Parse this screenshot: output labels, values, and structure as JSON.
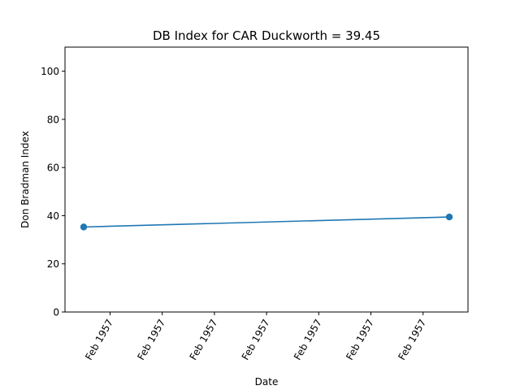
{
  "chart_data": {
    "type": "line",
    "title": "DB Index for CAR Duckworth = 39.45",
    "xlabel": "Date",
    "ylabel": "Don Bradman Index",
    "ylim": [
      0,
      110
    ],
    "yticks": [
      0,
      20,
      40,
      60,
      80,
      100
    ],
    "xtick_labels": [
      "Feb 1957",
      "Feb 1957",
      "Feb 1957",
      "Feb 1957",
      "Feb 1957",
      "Feb 1957",
      "Feb 1957"
    ],
    "grid": false,
    "series": [
      {
        "color": "#1f77b4",
        "points": [
          {
            "x": "1957-02",
            "y": 35.3
          },
          {
            "x": "1957-02",
            "y": 39.45
          }
        ]
      }
    ]
  }
}
